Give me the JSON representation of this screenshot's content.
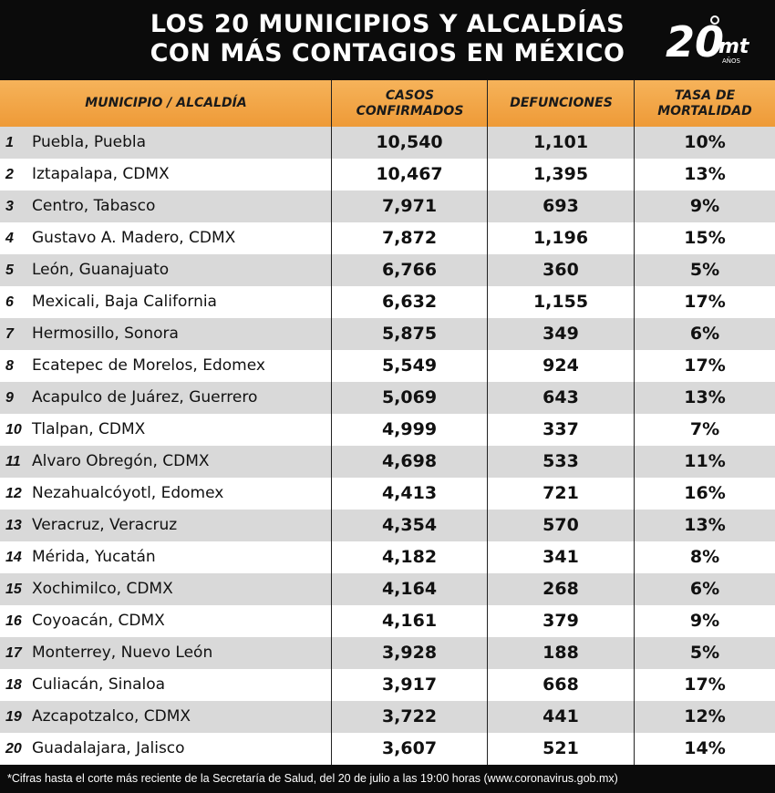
{
  "title": {
    "line1": "LOS 20 MUNICIPIOS Y ALCALDÍAS",
    "line2": "CON MÁS CONTAGIOS EN MÉXICO"
  },
  "logo": {
    "number": "20",
    "brand": "mt",
    "sub": "AÑOS"
  },
  "table": {
    "headers": {
      "municipio": "MUNICIPIO / ALCALDÍA",
      "casos": "CASOS\nCONFIRMADOS",
      "defunciones": "DEFUNCIONES",
      "tasa": "TASA DE\nMORTALIDAD"
    },
    "rows": [
      {
        "n": "1",
        "name": "Puebla, Puebla",
        "cases": "10,540",
        "deaths": "1,101",
        "rate": "10%"
      },
      {
        "n": "2",
        "name": "Iztapalapa, CDMX",
        "cases": "10,467",
        "deaths": "1,395",
        "rate": "13%"
      },
      {
        "n": "3",
        "name": "Centro, Tabasco",
        "cases": "7,971",
        "deaths": "693",
        "rate": "9%"
      },
      {
        "n": "4",
        "name": "Gustavo A. Madero, CDMX",
        "cases": "7,872",
        "deaths": "1,196",
        "rate": "15%"
      },
      {
        "n": "5",
        "name": "León, Guanajuato",
        "cases": "6,766",
        "deaths": "360",
        "rate": "5%"
      },
      {
        "n": "6",
        "name": "Mexicali, Baja California",
        "cases": "6,632",
        "deaths": "1,155",
        "rate": "17%"
      },
      {
        "n": "7",
        "name": "Hermosillo, Sonora",
        "cases": "5,875",
        "deaths": "349",
        "rate": "6%"
      },
      {
        "n": "8",
        "name": "Ecatepec de Morelos, Edomex",
        "cases": "5,549",
        "deaths": "924",
        "rate": "17%"
      },
      {
        "n": "9",
        "name": "Acapulco de Juárez, Guerrero",
        "cases": "5,069",
        "deaths": "643",
        "rate": "13%"
      },
      {
        "n": "10",
        "name": "Tlalpan, CDMX",
        "cases": "4,999",
        "deaths": "337",
        "rate": "7%"
      },
      {
        "n": "11",
        "name": "Alvaro Obregón, CDMX",
        "cases": "4,698",
        "deaths": "533",
        "rate": "11%"
      },
      {
        "n": "12",
        "name": "Nezahualcóyotl, Edomex",
        "cases": "4,413",
        "deaths": "721",
        "rate": "16%"
      },
      {
        "n": "13",
        "name": "Veracruz, Veracruz",
        "cases": "4,354",
        "deaths": "570",
        "rate": "13%"
      },
      {
        "n": "14",
        "name": "Mérida, Yucatán",
        "cases": "4,182",
        "deaths": "341",
        "rate": "8%"
      },
      {
        "n": "15",
        "name": "Xochimilco, CDMX",
        "cases": "4,164",
        "deaths": "268",
        "rate": "6%"
      },
      {
        "n": "16",
        "name": "Coyoacán, CDMX",
        "cases": "4,161",
        "deaths": "379",
        "rate": "9%"
      },
      {
        "n": "17",
        "name": "Monterrey, Nuevo León",
        "cases": "3,928",
        "deaths": "188",
        "rate": "5%"
      },
      {
        "n": "18",
        "name": "Culiacán, Sinaloa",
        "cases": "3,917",
        "deaths": "668",
        "rate": "17%"
      },
      {
        "n": "19",
        "name": "Azcapotzalco, CDMX",
        "cases": "3,722",
        "deaths": "441",
        "rate": "12%"
      },
      {
        "n": "20",
        "name": "Guadalajara, Jalisco",
        "cases": "3,607",
        "deaths": "521",
        "rate": "14%"
      }
    ]
  },
  "footer": "*Cifras hasta el corte más reciente de la Secretaría de Salud, del 20 de julio a las 19:00 horas (www.coronavirus.gob.mx)",
  "colors": {
    "header_bg": "#0b0b0b",
    "table_header": "#f0a040",
    "row_alt": "#d9d9d9"
  }
}
